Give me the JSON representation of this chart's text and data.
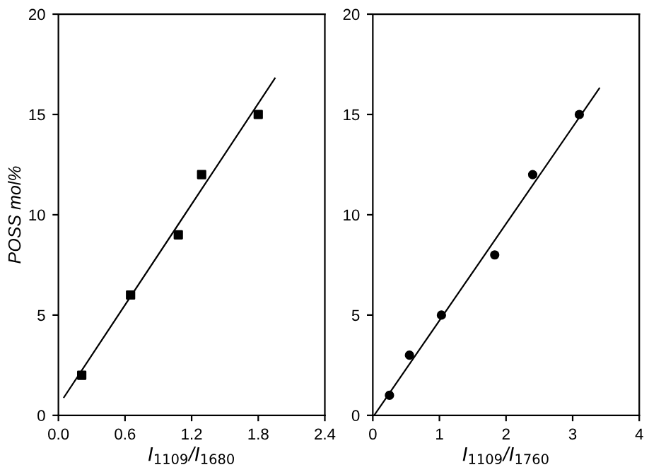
{
  "chart_data": [
    {
      "type": "scatter",
      "ylabel": "POSS mol%",
      "xlabel": "I$_{1109}$/I$_{1680}$",
      "xlim": [
        0,
        2.4
      ],
      "xticks": [
        {
          "value": 0,
          "label": "0.0"
        },
        0.6,
        1.2,
        1.8,
        2.4
      ],
      "ylim": [
        0,
        20
      ],
      "yticks": [
        0,
        5,
        10,
        15,
        20
      ],
      "grid": false,
      "legend": false,
      "series": [
        {
          "type": "scatter",
          "color": "#000000",
          "marker": "square",
          "x": [
            0.21,
            0.65,
            1.08,
            1.29,
            1.8
          ],
          "values": [
            2,
            6,
            9,
            12,
            15
          ]
        },
        {
          "type": "line",
          "color": "#000000",
          "marker": "none",
          "line_style": "solid",
          "x": [
            0.05,
            1.95
          ],
          "values": [
            0.9,
            16.8
          ]
        }
      ]
    },
    {
      "type": "scatter",
      "xlabel": "I$_{1109}$/I$_{1760}$",
      "xlim": [
        0,
        4
      ],
      "xticks": [
        0,
        1,
        2,
        3,
        4
      ],
      "ylim": [
        0,
        20
      ],
      "yticks": [
        0,
        5,
        10,
        15,
        20
      ],
      "grid": false,
      "legend": false,
      "series": [
        {
          "type": "scatter",
          "color": "#000000",
          "marker": "circle",
          "x": [
            0.25,
            0.55,
            1.03,
            1.83,
            2.4,
            3.1
          ],
          "values": [
            1,
            3,
            5,
            8,
            12,
            15
          ]
        },
        {
          "type": "line",
          "color": "#000000",
          "marker": "none",
          "line_style": "solid",
          "x": [
            0.02,
            3.4
          ],
          "values": [
            0,
            16.3
          ]
        }
      ]
    }
  ]
}
